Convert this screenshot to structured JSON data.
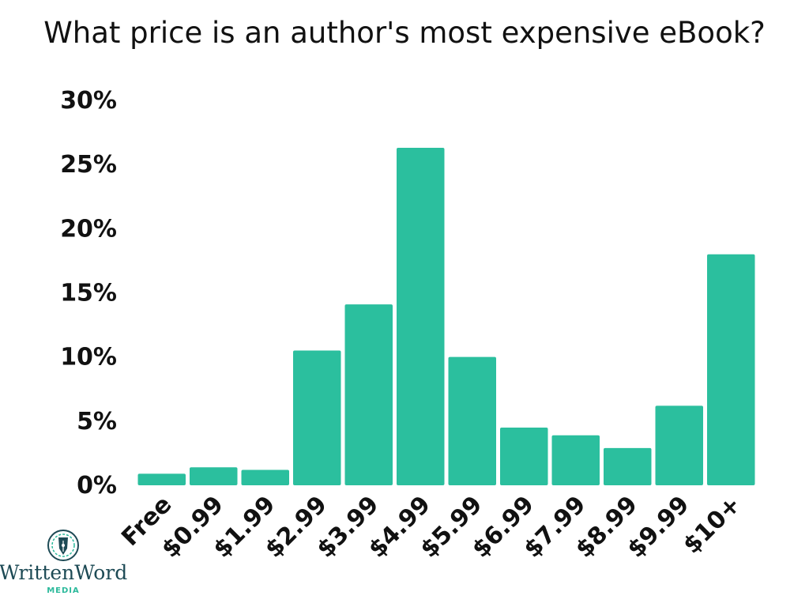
{
  "chart_data": {
    "type": "bar",
    "title": "What price is an author's most expensive eBook?",
    "categories": [
      "Free",
      "$0.99",
      "$1.99",
      "$2.99",
      "$3.99",
      "$4.99",
      "$5.99",
      "$6.99",
      "$7.99",
      "$8.99",
      "$9.99",
      "$10+"
    ],
    "values": [
      0.9,
      1.4,
      1.2,
      10.5,
      14.1,
      26.3,
      10.0,
      4.5,
      3.9,
      2.9,
      6.2,
      18.0
    ],
    "unit": "%",
    "ylim": [
      0,
      30
    ],
    "yticks": [
      "0%",
      "5%",
      "10%",
      "15%",
      "20%",
      "25%",
      "30%"
    ],
    "ytick_values": [
      0,
      5,
      10,
      15,
      20,
      25,
      30
    ],
    "xlabel": "",
    "ylabel": "",
    "grid": false,
    "legend": "none",
    "bar_color": "#2bbf9e"
  },
  "logo": {
    "name": "WrittenWord",
    "sub": "MEDIA",
    "icon": "fountain-pen-nib-icon",
    "color_primary": "#1d4a55",
    "color_accent": "#2bb99b"
  }
}
